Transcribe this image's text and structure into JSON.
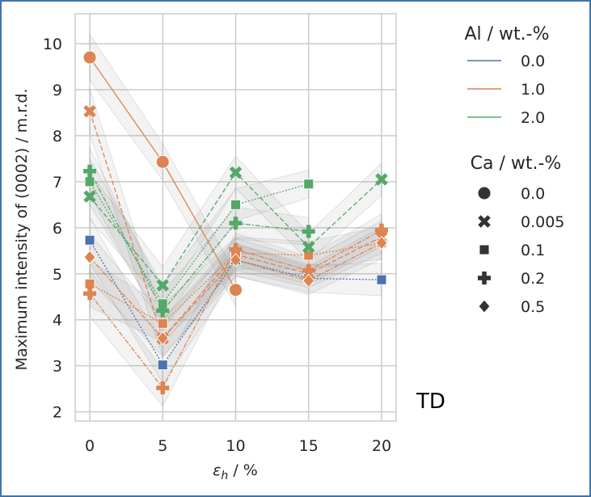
{
  "chart_data": {
    "type": "line",
    "title": "",
    "xlabel": "ε_h / %",
    "ylabel": "Maximum intensity of (0002) / m.r.d.",
    "x": [
      0,
      5,
      10,
      15,
      20
    ],
    "x_ticks": [
      "0",
      "5",
      "10",
      "15",
      "20"
    ],
    "y_ticks": [
      "2",
      "3",
      "4",
      "5",
      "6",
      "7",
      "8",
      "9",
      "10"
    ],
    "xlim": [
      -1,
      21
    ],
    "ylim": [
      1.8,
      10.65
    ],
    "grid": true,
    "annotation": "TD",
    "legend": {
      "placement": "outside-right",
      "hue_title": "Al / wt.-%",
      "hue_entries": [
        {
          "label": "0.0",
          "color": "#4c72b0"
        },
        {
          "label": "1.0",
          "color": "#dd8452"
        },
        {
          "label": "2.0",
          "color": "#55a868"
        }
      ],
      "style_title": "Ca / wt.-%",
      "style_entries": [
        {
          "label": "0.0",
          "marker": "circle"
        },
        {
          "label": "0.005",
          "marker": "x"
        },
        {
          "label": "0.1",
          "marker": "square"
        },
        {
          "label": "0.2",
          "marker": "plus"
        },
        {
          "label": "0.5",
          "marker": "diamond"
        }
      ]
    },
    "series": [
      {
        "name": "Al 0.0 / Ca 0.1",
        "al": "0.0",
        "ca": "0.1",
        "color": "#4c72b0",
        "marker": "square",
        "dash": "dot",
        "values": [
          5.73,
          3.02,
          5.3,
          4.9,
          4.87
        ]
      },
      {
        "name": "Al 1.0 / Ca 0.0",
        "al": "1.0",
        "ca": "0.0",
        "color": "#dd8452",
        "marker": "circle",
        "dash": "solid",
        "values": [
          9.7,
          7.43,
          4.65,
          null,
          null
        ]
      },
      {
        "name": "Al 1.0 / Ca 0.005",
        "al": "1.0",
        "ca": "0.005",
        "color": "#dd8452",
        "marker": "x",
        "dash": "dash",
        "values": [
          8.53,
          3.6,
          5.42,
          5.0,
          5.8
        ]
      },
      {
        "name": "Al 1.0 / Ca 0.1",
        "al": "1.0",
        "ca": "0.1",
        "color": "#dd8452",
        "marker": "square",
        "dash": "dot",
        "values": [
          4.78,
          3.92,
          5.45,
          5.4,
          5.67
        ]
      },
      {
        "name": "Al 1.0 / Ca 0.2",
        "al": "1.0",
        "ca": "0.2",
        "color": "#dd8452",
        "marker": "plus",
        "dash": "dashdot",
        "values": [
          4.57,
          2.52,
          5.53,
          5.07,
          5.95
        ]
      },
      {
        "name": "Al 1.0 / Ca 0.5",
        "al": "1.0",
        "ca": "0.5",
        "color": "#dd8452",
        "marker": "diamond",
        "dash": "dashdot",
        "values": [
          5.36,
          3.6,
          5.3,
          4.85,
          5.67
        ]
      },
      {
        "name": "Al 2.0 / Ca 0.005",
        "al": "2.0",
        "ca": "0.005",
        "color": "#55a868",
        "marker": "x",
        "dash": "dash",
        "values": [
          6.68,
          4.75,
          7.2,
          5.58,
          7.05
        ]
      },
      {
        "name": "Al 2.0 / Ca 0.1",
        "al": "2.0",
        "ca": "0.1",
        "color": "#55a868",
        "marker": "square",
        "dash": "dot",
        "values": [
          7.0,
          4.35,
          6.5,
          6.95,
          null
        ]
      },
      {
        "name": "Al 2.0 / Ca 0.2",
        "al": "2.0",
        "ca": "0.2",
        "color": "#55a868",
        "marker": "plus",
        "dash": "dashdot",
        "values": [
          7.23,
          4.2,
          6.1,
          5.92,
          null
        ]
      }
    ]
  }
}
